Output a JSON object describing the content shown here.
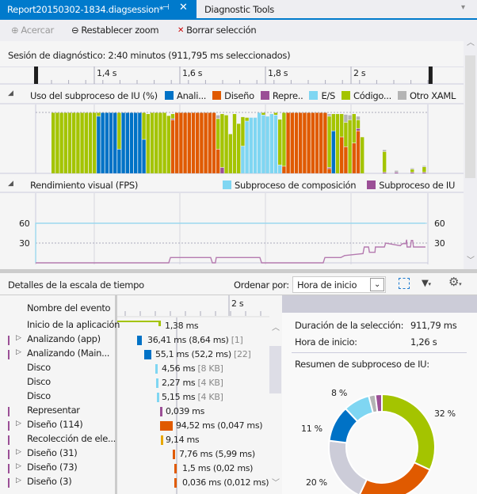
{
  "tabs": [
    {
      "label": "Report20150302-1834.diagsession*",
      "active": true
    },
    {
      "label": "Diagnostic Tools",
      "active": false
    }
  ],
  "toolbar": {
    "zoom_in": "Acercar",
    "reset_zoom": "Restablecer zoom",
    "clear_selection": "Borrar selección"
  },
  "session_text": "Sesión de diagnóstico: 2:40 minutos (911,795 ms seleccionados)",
  "ruler": {
    "ticks": [
      {
        "t": 1.4,
        "label": "1,4 s"
      },
      {
        "t": 1.6,
        "label": "1,6 s"
      },
      {
        "t": 1.8,
        "label": "1,8 s"
      },
      {
        "t": 2.0,
        "label": "2 s"
      }
    ],
    "selection": [
      1.263,
      2.185
    ]
  },
  "colors": {
    "g": "#a4c400",
    "b": "#0072c6",
    "o": "#e05a00",
    "p": "#9b4f96",
    "c": "#7fd6f2",
    "x": "#b4b4b4",
    "accent": "#007acc"
  },
  "ui_thread": {
    "title": "Uso del subproceso de IU (%)",
    "legend": [
      {
        "code": "b",
        "label": "Anali..."
      },
      {
        "code": "o",
        "label": "Diseño"
      },
      {
        "code": "p",
        "label": "Repre.."
      },
      {
        "code": "c",
        "label": "E/S"
      },
      {
        "code": "g",
        "label": "Código..."
      },
      {
        "code": "x",
        "label": "Otro XAML"
      }
    ],
    "chart_data": {
      "type": "bar",
      "stacked": true,
      "ylim": [
        0,
        100
      ],
      "bars": [
        [
          [
            "g",
            100
          ]
        ],
        [
          [
            "g",
            100
          ]
        ],
        [
          [
            "g",
            100
          ]
        ],
        [
          [
            "g",
            100
          ]
        ],
        [
          [
            "g",
            100
          ]
        ],
        [
          [
            "g",
            100
          ]
        ],
        [
          [
            "g",
            100
          ]
        ],
        [
          [
            "g",
            100
          ]
        ],
        [
          [
            "g",
            100
          ]
        ],
        [
          [
            "g",
            100
          ]
        ],
        [
          [
            "g",
            100
          ]
        ],
        [
          [
            "b",
            94
          ],
          [
            "g",
            6
          ]
        ],
        [
          [
            "b",
            100
          ]
        ],
        [
          [
            "b",
            100
          ]
        ],
        [
          [
            "b",
            100
          ]
        ],
        [
          [
            "b",
            100
          ]
        ],
        [
          [
            "b",
            40
          ],
          [
            "g",
            60
          ]
        ],
        [
          [
            "b",
            100
          ]
        ],
        [
          [
            "b",
            100
          ]
        ],
        [
          [
            "b",
            100
          ]
        ],
        [
          [
            "b",
            100
          ]
        ],
        [
          [
            "b",
            100
          ]
        ],
        [
          [
            "b",
            56
          ],
          [
            "g",
            44
          ]
        ],
        [
          [
            "g",
            98
          ]
        ],
        [
          [
            "g",
            100
          ]
        ],
        [
          [
            "g",
            100
          ]
        ],
        [
          [
            "g",
            100
          ]
        ],
        [
          [
            "g",
            100
          ]
        ],
        [
          [
            "g",
            95
          ]
        ],
        [
          [
            "o",
            88
          ],
          [
            "p",
            2
          ],
          [
            "g",
            8
          ]
        ],
        [
          [
            "o",
            100
          ]
        ],
        [
          [
            "o",
            100
          ]
        ],
        [
          [
            "o",
            100
          ]
        ],
        [
          [
            "o",
            100
          ]
        ],
        [
          [
            "o",
            100
          ]
        ],
        [
          [
            "o",
            100
          ]
        ],
        [
          [
            "o",
            100
          ]
        ],
        [
          [
            "o",
            100
          ]
        ],
        [
          [
            "o",
            100
          ]
        ],
        [
          [
            "o",
            100
          ]
        ],
        [
          [
            "o",
            40
          ],
          [
            "g",
            50
          ],
          [
            "x",
            6
          ]
        ],
        [
          [
            "p",
            10
          ],
          [
            "g",
            88
          ]
        ],
        [
          [
            "g",
            96
          ]
        ],
        [
          [
            "g",
            65
          ]
        ],
        [
          [
            "g",
            98
          ]
        ],
        [
          [
            "g",
            82
          ]
        ],
        [
          [
            "c",
            45
          ],
          [
            "g",
            48
          ]
        ],
        [
          [
            "c",
            86
          ],
          [
            "g",
            6
          ]
        ],
        [
          [
            "c",
            92
          ]
        ],
        [
          [
            "c",
            92
          ]
        ],
        [
          [
            "c",
            100
          ]
        ],
        [
          [
            "c",
            96
          ],
          [
            "g",
            4
          ]
        ],
        [
          [
            "c",
            94
          ]
        ],
        [
          [
            "c",
            98
          ]
        ],
        [
          [
            "c",
            96
          ],
          [
            "g",
            4
          ]
        ],
        [
          [
            "c",
            14
          ],
          [
            "g",
            75
          ]
        ],
        [
          [
            "o",
            12
          ],
          [
            "g",
            88
          ]
        ],
        [
          [
            "o",
            100
          ]
        ],
        [
          [
            "o",
            100
          ]
        ],
        [
          [
            "o",
            100
          ]
        ],
        [
          [
            "o",
            100
          ]
        ],
        [
          [
            "o",
            100
          ]
        ],
        [
          [
            "o",
            100
          ]
        ],
        [
          [
            "o",
            100
          ]
        ],
        [
          [
            "o",
            100
          ]
        ],
        [
          [
            "o",
            100
          ]
        ],
        [
          [
            "o",
            100
          ]
        ],
        [
          [
            "o",
            8
          ],
          [
            "p",
            2
          ],
          [
            "g",
            84
          ],
          [
            "x",
            4
          ]
        ],
        [
          [
            "b",
            70
          ],
          [
            "g",
            28
          ]
        ],
        [
          [
            "g",
            98
          ]
        ],
        [
          [
            "o",
            60
          ],
          [
            "g",
            38
          ]
        ],
        [
          [
            "o",
            44
          ],
          [
            "g",
            40
          ],
          [
            "x",
            13
          ]
        ],
        [
          [
            "g",
            88
          ],
          [
            "x",
            8
          ]
        ],
        [
          [
            "o",
            50
          ],
          [
            "g",
            48
          ]
        ],
        [
          [
            "o",
            70
          ],
          [
            "p",
            4
          ],
          [
            "g",
            14
          ],
          [
            "x",
            6
          ]
        ],
        [
          [
            "g",
            60
          ]
        ]
      ],
      "sparse": [
        {
          "t": 2.074,
          "seg": [
            [
              "p",
              2
            ],
            [
              "g",
              34
            ],
            [
              "x",
              3
            ]
          ]
        },
        {
          "t": 2.102,
          "seg": [
            [
              "p",
              2
            ],
            [
              "x",
              3
            ]
          ]
        },
        {
          "t": 2.139,
          "seg": [
            [
              "p",
              2
            ],
            [
              "g",
              5
            ],
            [
              "x",
              2
            ]
          ]
        },
        {
          "t": 2.167,
          "seg": [
            [
              "p",
              2
            ],
            [
              "g",
              9
            ],
            [
              "x",
              2
            ]
          ]
        }
      ]
    }
  },
  "fps": {
    "title": "Rendimiento visual (FPS)",
    "legend": [
      {
        "code": "c",
        "label": "Subproceso de composición"
      },
      {
        "code": "p",
        "label": "Subproceso de IU"
      }
    ],
    "chart_data": {
      "type": "line",
      "ylim": [
        0,
        70
      ],
      "yticks": [
        "60",
        "30"
      ],
      "series": [
        {
          "name": "Subproceso de composición",
          "code": "c",
          "points": [
            [
              1.263,
              0
            ],
            [
              1.263,
              60
            ],
            [
              2.174,
              60
            ]
          ]
        },
        {
          "name": "Subproceso de IU",
          "code": "p",
          "points": [
            [
              1.263,
              0
            ],
            [
              1.574,
              0
            ],
            [
              1.578,
              8
            ],
            [
              1.672,
              8
            ],
            [
              1.676,
              0
            ],
            [
              1.683,
              0
            ],
            [
              1.685,
              8
            ],
            [
              1.787,
              8
            ],
            [
              1.791,
              0
            ],
            [
              1.935,
              0
            ],
            [
              1.939,
              8
            ],
            [
              1.976,
              8
            ],
            [
              1.985,
              11
            ],
            [
              2.013,
              13
            ],
            [
              2.028,
              14
            ],
            [
              2.031,
              24
            ],
            [
              2.041,
              24
            ],
            [
              2.043,
              16
            ],
            [
              2.056,
              16
            ],
            [
              2.057,
              24
            ],
            [
              2.078,
              24
            ],
            [
              2.081,
              30
            ],
            [
              2.115,
              26
            ],
            [
              2.12,
              29
            ],
            [
              2.128,
              29
            ],
            [
              2.13,
              35
            ],
            [
              2.131,
              24
            ],
            [
              2.139,
              24
            ],
            [
              2.141,
              34
            ],
            [
              2.144,
              34
            ],
            [
              2.146,
              24
            ],
            [
              2.174,
              24
            ]
          ]
        }
      ]
    }
  },
  "details": {
    "title": "Detalles de la escala de tiempo",
    "sort_label": "Ordenar por:",
    "sort_value": "Hora de inicio",
    "column_header": "Nombre del evento",
    "timeline_tick": "2 s",
    "events": [
      {
        "name": "Inicio de la aplicación",
        "ui": false,
        "expand": false,
        "color": "g",
        "value": "1,38 ms",
        "extra": ""
      },
      {
        "name": "Analizando (app)",
        "ui": true,
        "expand": true,
        "color": "b",
        "value": "36,41 ms (8,64 ms)",
        "extra": "[1]"
      },
      {
        "name": "Analizando (Main...",
        "ui": true,
        "expand": true,
        "color": "b",
        "value": "55,1 ms (52,2 ms)",
        "extra": "[22]"
      },
      {
        "name": "Disco",
        "ui": false,
        "expand": false,
        "color": "c",
        "value": "4,56 ms",
        "extra": "[8 KB]"
      },
      {
        "name": "Disco",
        "ui": false,
        "expand": false,
        "color": "c",
        "value": "2,27 ms",
        "extra": "[4 KB]"
      },
      {
        "name": "Disco",
        "ui": false,
        "expand": false,
        "color": "c",
        "value": "5,15 ms",
        "extra": "[4 KB]"
      },
      {
        "name": "Representar",
        "ui": true,
        "expand": false,
        "color": "p",
        "value": "0,039 ms",
        "extra": ""
      },
      {
        "name": "Diseño (114)",
        "ui": true,
        "expand": true,
        "color": "o",
        "value": "94,52 ms (0,047 ms)",
        "extra": ""
      },
      {
        "name": "Recolección de ele...",
        "ui": true,
        "expand": false,
        "color": "y",
        "value": "9,14 ms",
        "extra": ""
      },
      {
        "name": "Diseño (31)",
        "ui": true,
        "expand": true,
        "color": "o",
        "value": "7,76 ms (5,99 ms)",
        "extra": ""
      },
      {
        "name": "Diseño (73)",
        "ui": true,
        "expand": true,
        "color": "o",
        "value": "1,5 ms (0,02 ms)",
        "extra": ""
      },
      {
        "name": "Diseño (3)",
        "ui": true,
        "expand": true,
        "color": "o",
        "value": "0,036 ms (0,012 ms)",
        "extra": ""
      }
    ]
  },
  "summary": {
    "duration_label": "Duración de la selección:",
    "duration_value": "911,79 ms",
    "start_label": "Hora de inicio:",
    "start_value": "1,26 s",
    "title": "Resumen de subproceso de IU:",
    "chart_data": {
      "type": "pie",
      "donut": true,
      "slices": [
        {
          "code": "g",
          "value": 32,
          "label": "32 %"
        },
        {
          "code": "o",
          "value": 25,
          "label": ""
        },
        {
          "code": "l",
          "value": 20,
          "label": "20 %"
        },
        {
          "code": "b",
          "value": 11,
          "label": "11 %"
        },
        {
          "code": "c",
          "value": 8,
          "label": "8 %"
        },
        {
          "code": "x",
          "value": 2,
          "label": ""
        },
        {
          "code": "p",
          "value": 2,
          "label": ""
        }
      ]
    }
  }
}
